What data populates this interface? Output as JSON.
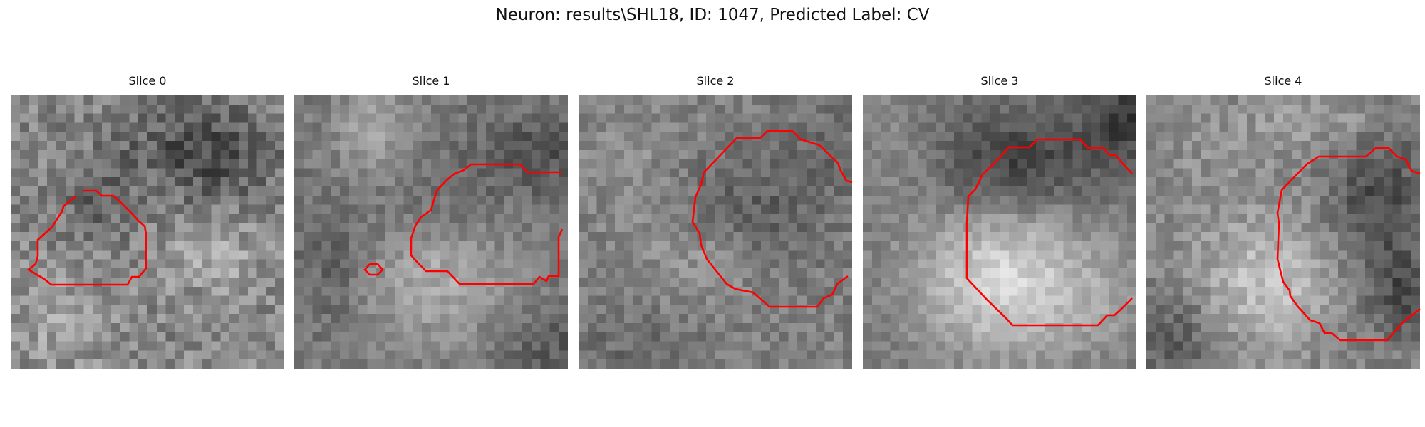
{
  "figure": {
    "title": "Neuron: results\\SHL18, ID: 1047, Predicted Label: CV",
    "contour_color": "#ff0000",
    "colormap": "gray"
  },
  "slices": [
    {
      "title": "Slice 0"
    },
    {
      "title": "Slice 1"
    },
    {
      "title": "Slice 2"
    },
    {
      "title": "Slice 3"
    },
    {
      "title": "Slice 4"
    }
  ]
}
